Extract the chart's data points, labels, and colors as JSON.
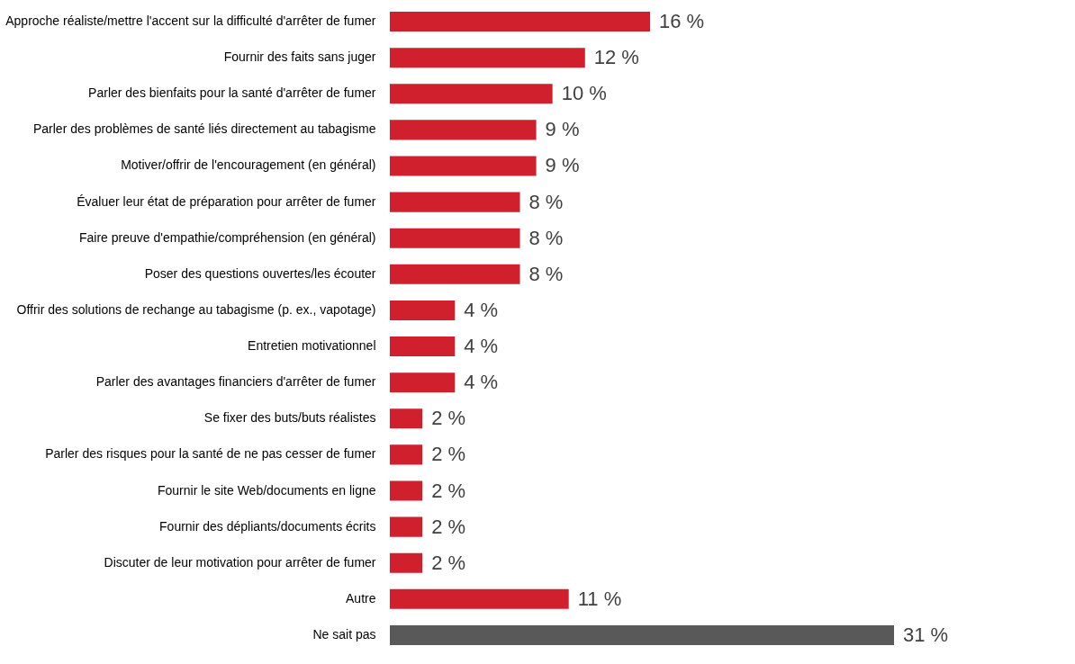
{
  "chart_data": {
    "type": "bar",
    "orientation": "horizontal",
    "categories": [
      "Approche réaliste/mettre l'accent sur la difficulté d'arrêter de fumer",
      "Fournir des faits sans juger",
      "Parler des bienfaits pour la santé d'arrêter de fumer",
      "Parler des problèmes de santé liés directement au tabagisme",
      "Motiver/offrir de l'encouragement (en général)",
      "Évaluer leur état de préparation pour arrêter de fumer",
      "Faire preuve d'empathie/compréhension (en général)",
      "Poser des questions ouvertes/les écouter",
      "Offrir des solutions de rechange au tabagisme (p. ex., vapotage)",
      "Entretien motivationnel",
      "Parler des avantages financiers d'arrêter de fumer",
      "Se fixer des buts/buts réalistes",
      "Parler des risques pour la santé de ne pas cesser de fumer",
      "Fournir le site Web/documents en ligne",
      "Fournir des dépliants/documents écrits",
      "Discuter de leur motivation pour arrêter de fumer",
      "Autre",
      "Ne sait pas"
    ],
    "values": [
      16,
      12,
      10,
      9,
      9,
      8,
      8,
      8,
      4,
      4,
      4,
      2,
      2,
      2,
      2,
      2,
      11,
      31
    ],
    "colors": [
      "#d0202e",
      "#d0202e",
      "#d0202e",
      "#d0202e",
      "#d0202e",
      "#d0202e",
      "#d0202e",
      "#d0202e",
      "#d0202e",
      "#d0202e",
      "#d0202e",
      "#d0202e",
      "#d0202e",
      "#d0202e",
      "#d0202e",
      "#d0202e",
      "#d0202e",
      "#595959"
    ],
    "value_labels": [
      "16 %",
      "12 %",
      "10 %",
      "9 %",
      "9 %",
      "8 %",
      "8 %",
      "8 %",
      "4 %",
      "4 %",
      "4 %",
      "2 %",
      "2 %",
      "2 %",
      "2 %",
      "2 %",
      "11 %",
      "31 %"
    ],
    "grid": false
  }
}
